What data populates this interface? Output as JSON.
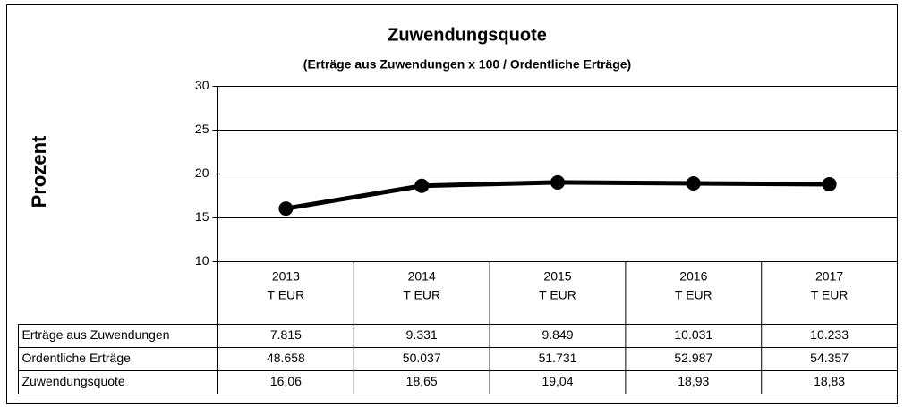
{
  "chart_data": {
    "type": "line",
    "title": "Zuwendungsquote",
    "subtitle": "(Erträge aus Zuwendungen x 100 / Ordentliche Erträge)",
    "y_label": "Prozent",
    "categories": [
      "2013",
      "2014",
      "2015",
      "2016",
      "2017"
    ],
    "category_unit": "T EUR",
    "ylim": [
      10,
      30
    ],
    "yticks": [
      10,
      15,
      20,
      25,
      30
    ],
    "grid": true,
    "series": [
      {
        "name": "Zuwendungsquote",
        "color": "#000000",
        "values": [
          16.06,
          18.65,
          19.04,
          18.93,
          18.83
        ],
        "value_labels": [
          "16,06",
          "18,65",
          "19,04",
          "18,93",
          "18,83"
        ]
      }
    ],
    "table_rows": [
      {
        "name": "Erträge aus Zuwendungen",
        "cells": [
          "7.815",
          "9.331",
          "9.849",
          "10.031",
          "10.233"
        ]
      },
      {
        "name": "Ordentliche Erträge",
        "cells": [
          "48.658",
          "50.037",
          "51.731",
          "52.987",
          "54.357"
        ]
      }
    ]
  }
}
